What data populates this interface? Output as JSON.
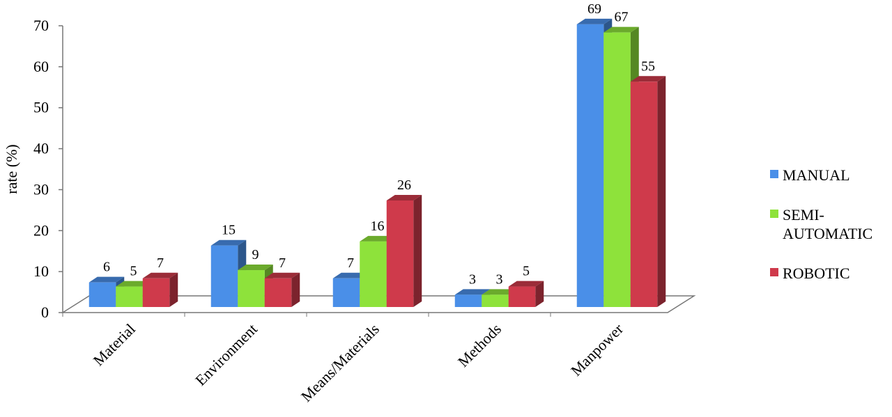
{
  "chart_data": {
    "type": "bar3d",
    "y_label": "rate (%)",
    "categories": [
      "Material",
      "Environment",
      "Means/Materials",
      "Methods",
      "Manpower"
    ],
    "series": [
      {
        "name": "MANUAL",
        "color": "#4a8fe8",
        "values": [
          6,
          15,
          7,
          3,
          69
        ]
      },
      {
        "name": "SEMI-AUTOMATIC",
        "color": "#8ee23b",
        "values": [
          5,
          9,
          16,
          3,
          67
        ]
      },
      {
        "name": "ROBOTIC",
        "color": "#cf3a4b",
        "values": [
          7,
          7,
          26,
          5,
          55
        ]
      }
    ],
    "ylim": [
      0,
      70
    ],
    "yticks": [
      0,
      10,
      20,
      30,
      40,
      50,
      60,
      70
    ],
    "data_labels": true,
    "legend": "right"
  }
}
